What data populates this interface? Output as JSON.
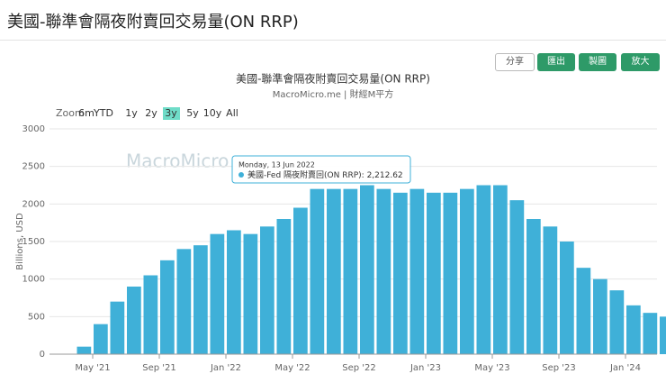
{
  "header": {
    "title": "美國-聯準會隔夜附賣回交易量(ON RRP)",
    "buttons": [
      "分享",
      "匯出",
      "製圖",
      "放大"
    ]
  },
  "zoom": {
    "label": "Zoom",
    "options": [
      "6m",
      "YTD",
      "1y",
      "2y",
      "3y",
      "5y",
      "10y",
      "All"
    ],
    "selected": "3y"
  },
  "watermark": "MacroMicro",
  "tooltip": {
    "date": "Monday, 13 Jun 2022",
    "series": "美國-Fed 隔夜附賣回(ON RRP): ",
    "value": "2,212.62"
  },
  "chart_data": {
    "type": "bar",
    "title": "美國-聯準會隔夜附賣回交易量(ON RRP)",
    "subtitle": "MacroMicro.me | 財經M平方",
    "y_label": "Billions, USD",
    "color": "#3fb0d8",
    "grid": true,
    "categories": [
      null,
      null,
      "May '21",
      null,
      null,
      null,
      "Sep '21",
      null,
      null,
      null,
      "Jan '22",
      null,
      null,
      null,
      "May '22",
      null,
      null,
      null,
      "Sep '22",
      null,
      null,
      null,
      "Jan '23",
      null,
      null,
      null,
      "May '23",
      null,
      null,
      null,
      "Sep '23",
      null,
      null,
      null,
      "Jan '24",
      null,
      null
    ],
    "values": [
      5,
      100,
      400,
      700,
      900,
      1050,
      1250,
      1400,
      1450,
      1600,
      1650,
      1600,
      1700,
      1800,
      1950,
      2200,
      2200,
      2200,
      2250,
      2200,
      2150,
      2200,
      2150,
      2150,
      2200,
      2250,
      2250,
      2050,
      1800,
      1700,
      1500,
      1150,
      1000,
      850,
      650,
      550,
      500
    ],
    "ylim": [
      0,
      3000
    ],
    "yticks": [
      0,
      500,
      1000,
      1500,
      2000,
      2500,
      3000
    ]
  }
}
